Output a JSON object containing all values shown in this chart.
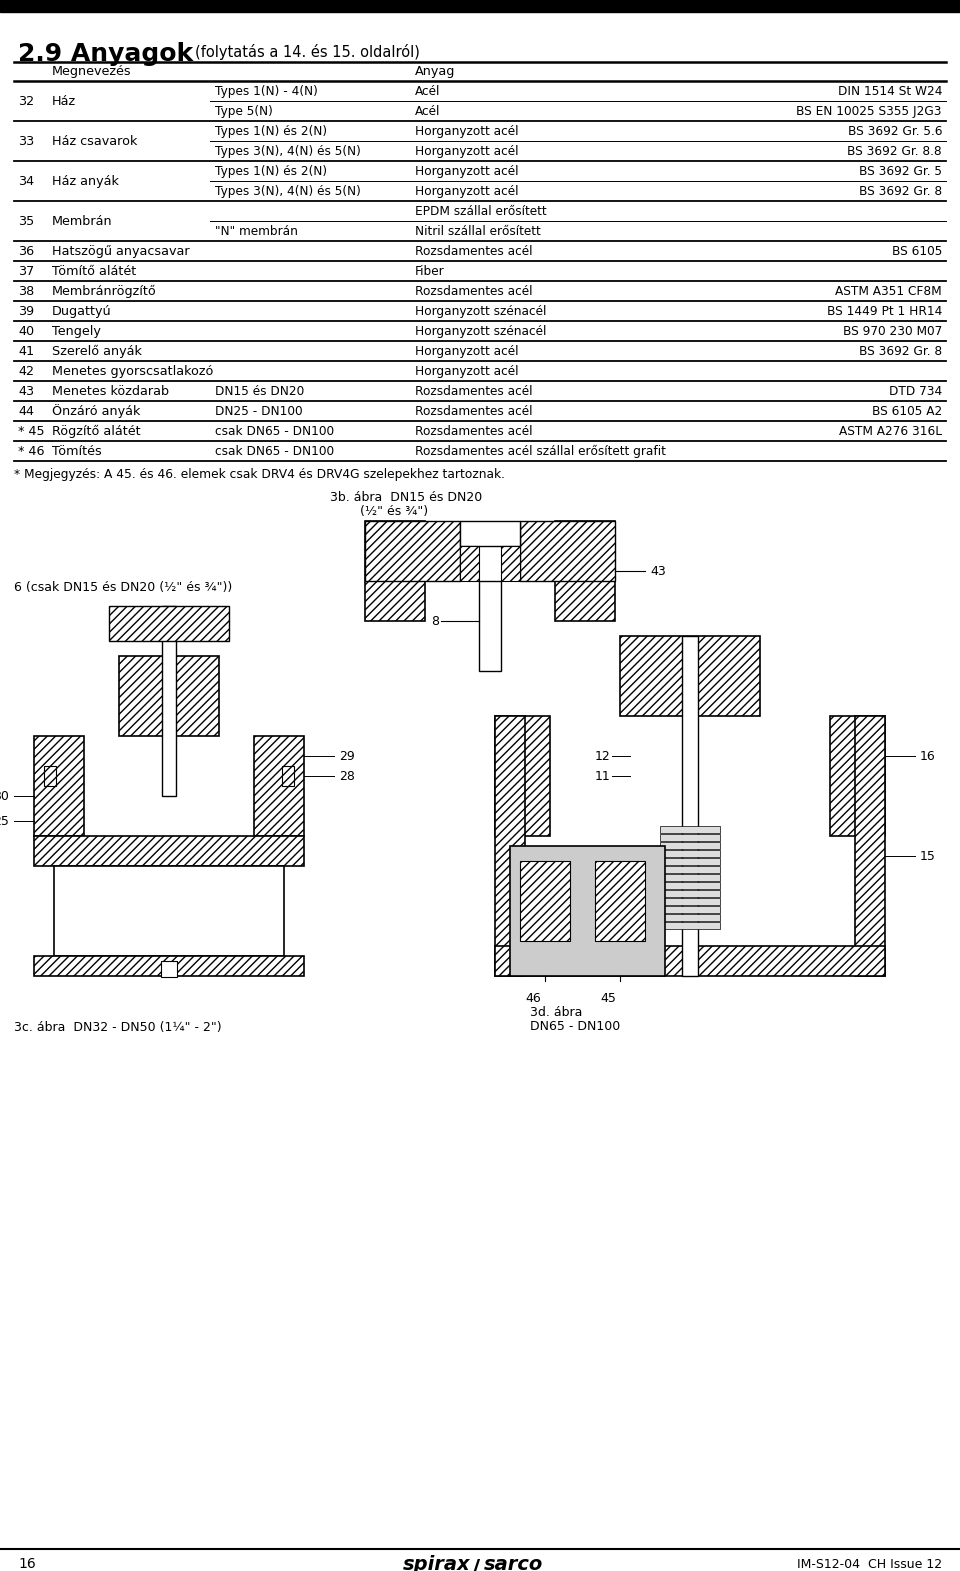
{
  "title_large": "2.9 Anyagok",
  "title_small": "(folytatás a 14. és 15. oldalról)",
  "header_left": "Megnevezés",
  "header_right": "Anyag",
  "rows": [
    {
      "num": "32",
      "name": "Ház",
      "sub1": "Types 1(N) - 4(N)",
      "sub1_mat": "Acél",
      "sub1_spec": "DIN 1514 St W24",
      "sub2": "Type 5(N)",
      "sub2_mat": "Acél",
      "sub2_spec": "BS EN 10025 S355 J2G3"
    },
    {
      "num": "33",
      "name": "Ház csavarok",
      "sub1": "Types 1(N) és 2(N)",
      "sub1_mat": "Horganyzott acél",
      "sub1_spec": "BS 3692 Gr. 5.6",
      "sub2": "Types 3(N), 4(N) és 5(N)",
      "sub2_mat": "Horganyzott acél",
      "sub2_spec": "BS 3692 Gr. 8.8"
    },
    {
      "num": "34",
      "name": "Ház anyák",
      "sub1": "Types 1(N) és 2(N)",
      "sub1_mat": "Horganyzott acél",
      "sub1_spec": "BS 3692 Gr. 5",
      "sub2": "Types 3(N), 4(N) és 5(N)",
      "sub2_mat": "Horganyzott acél",
      "sub2_spec": "BS 3692 Gr. 8"
    },
    {
      "num": "35",
      "name": "Membrán",
      "sub1": "",
      "sub1_mat": "EPDM szállal erősített",
      "sub1_spec": "",
      "sub2": "\"N\" membrán",
      "sub2_mat": "Nitril szállal erősített",
      "sub2_spec": ""
    },
    {
      "num": "36",
      "name": "Hatszögű anyacsavar",
      "sub1": "",
      "sub1_mat": "Rozsdamentes acél",
      "sub1_spec": "BS 6105"
    },
    {
      "num": "37",
      "name": "Tömítő alátét",
      "sub1": "",
      "sub1_mat": "Fiber",
      "sub1_spec": ""
    },
    {
      "num": "38",
      "name": "Membránrögzítő",
      "sub1": "",
      "sub1_mat": "Rozsdamentes acél",
      "sub1_spec": "ASTM A351 CF8M"
    },
    {
      "num": "39",
      "name": "Dugattyú",
      "sub1": "",
      "sub1_mat": "Horganyzott szénacél",
      "sub1_spec": "BS 1449 Pt 1 HR14"
    },
    {
      "num": "40",
      "name": "Tengely",
      "sub1": "",
      "sub1_mat": "Horganyzott szénacél",
      "sub1_spec": "BS 970 230 M07"
    },
    {
      "num": "41",
      "name": "Szerelő anyák",
      "sub1": "",
      "sub1_mat": "Horganyzott acél",
      "sub1_spec": "BS 3692 Gr. 8"
    },
    {
      "num": "42",
      "name": "Menetes gyorscsatlakozó",
      "sub1": "",
      "sub1_mat": "Horganyzott acél",
      "sub1_spec": ""
    },
    {
      "num": "43",
      "name": "Menetes közdarab",
      "sub1": "DN15 és DN20",
      "sub1_mat": "Rozsdamentes acél",
      "sub1_spec": "DTD 734"
    },
    {
      "num": "44",
      "name": "Önzáró anyák",
      "sub1": "DN25 - DN100",
      "sub1_mat": "Rozsdamentes acél",
      "sub1_spec": "BS 6105 A2"
    },
    {
      "num": "* 45",
      "name": "Rögzítő alátét",
      "sub1": "csak DN65 - DN100",
      "sub1_mat": "Rozsdamentes acél",
      "sub1_spec": "ASTM A276 316L"
    },
    {
      "num": "* 46",
      "name": "Tömítés",
      "sub1": "csak DN65 - DN100",
      "sub1_mat": "Rozsdamentes acél szállal erősített grafit",
      "sub1_spec": ""
    }
  ],
  "footnote": "* Megjegyzés: A 45. és 46. elemek csak DRV4 és DRV4G szelepekhez tartoznak.",
  "fig_3b_label": "3b. ábra  DN15 és DN20",
  "fig_3b_sub": "(½\" és ¾\")",
  "fig_3c_label": "3c. ábra  DN32 - DN50 (1¼\" - 2\")",
  "fig_3d_label": "3d. ábra",
  "fig_3d_sub": "DN65 - DN100",
  "label_6": "6 (csak DN15 és DN20 (½\" és ¾\"))",
  "page_num": "16",
  "doc_ref": "IM-S12-04  CH Issue 12",
  "bg_color": "#ffffff",
  "text_color": "#000000",
  "line_color": "#000000"
}
